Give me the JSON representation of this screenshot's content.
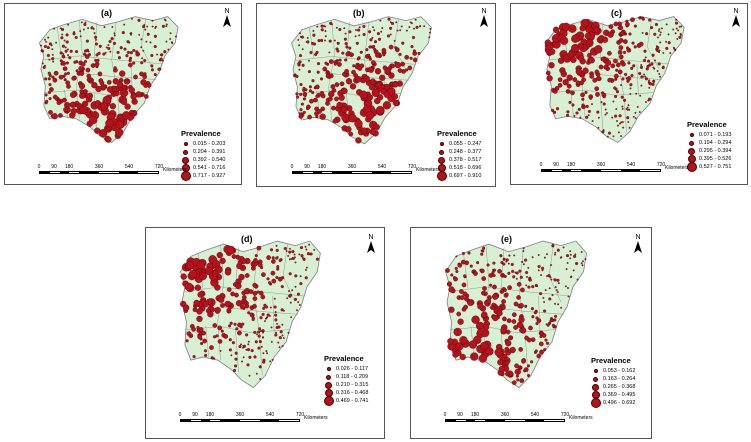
{
  "colors": {
    "land": "#d7f0d4",
    "border": "#7f7f7f",
    "marker": "#b5121b",
    "marker_edge": "#3a0508"
  },
  "north_label": "N",
  "scale": {
    "ticks": [
      "0",
      "90",
      "180",
      "360",
      "540",
      "720"
    ],
    "unit": "Kilometers"
  },
  "legend_title": "Prevalence",
  "panels": [
    {
      "label": "(a)",
      "seed": 11,
      "bias": "south",
      "ranges": [
        "0.015 - 0.203",
        "0.204 - 0.391",
        "0.392 - 0.540",
        "0.541 - 0.716",
        "0.717 - 0.927"
      ]
    },
    {
      "label": "(b)",
      "seed": 23,
      "bias": "southeast",
      "ranges": [
        "0.055 - 0.247",
        "0.248 - 0.377",
        "0.378 - 0.517",
        "0.518 - 0.696",
        "0.697 - 0.910"
      ]
    },
    {
      "label": "(c)",
      "seed": 37,
      "bias": "northwest",
      "ranges": [
        "0.071 - 0.193",
        "0.194 - 0.294",
        "0.295 - 0.394",
        "0.395 - 0.526",
        "0.527 - 0.751"
      ]
    },
    {
      "label": "(d)",
      "seed": 41,
      "bias": "northwest",
      "ranges": [
        "0.026 - 0.117",
        "0.118 - 0.209",
        "0.210 - 0.315",
        "0.316 - 0.468",
        "0.469 - 0.741"
      ]
    },
    {
      "label": "(e)",
      "seed": 53,
      "bias": "southwest",
      "ranges": [
        "0.053 - 0.162",
        "0.163 - 0.264",
        "0.265 - 0.368",
        "0.369 - 0.495",
        "0.496 - 0.692"
      ]
    }
  ]
}
